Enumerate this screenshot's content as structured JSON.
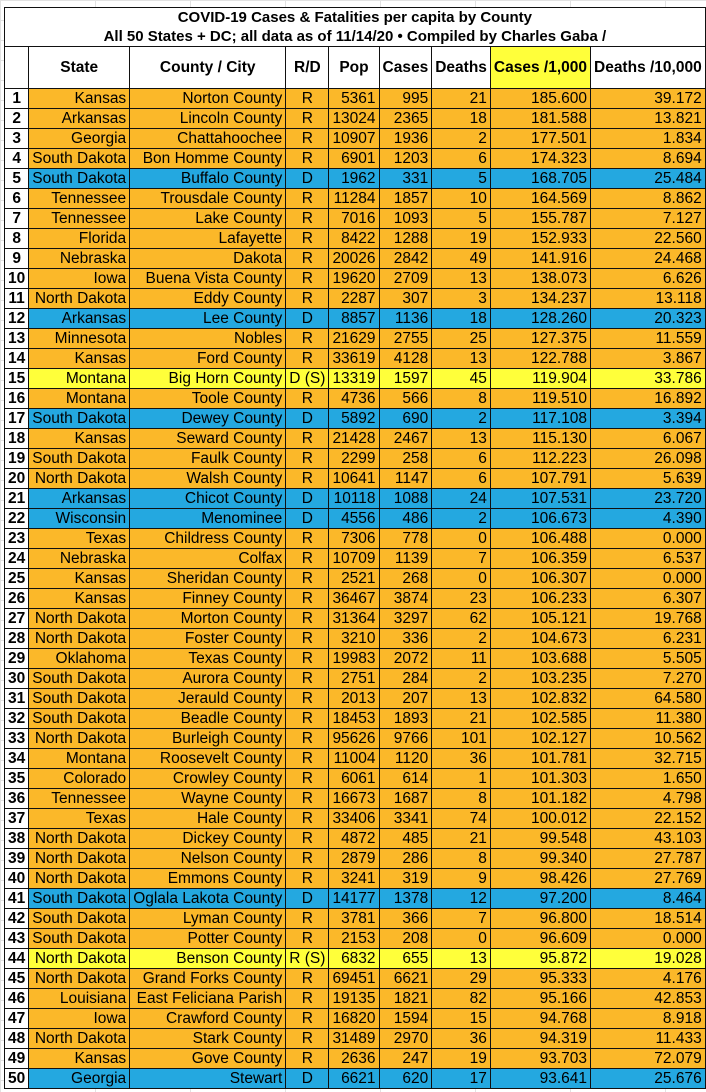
{
  "title": {
    "line1": "COVID-19 Cases & Fatalities per capita by County",
    "line2": "All 50 States + DC; all data as of 11/14/20  • Compiled by Charles Gaba /"
  },
  "columns": [
    "",
    "State",
    "County / City",
    "R/D",
    "Pop",
    "Cases",
    "Deaths",
    "Cases /1,000",
    "Deaths /10,000"
  ],
  "colors": {
    "R": "#fbb829",
    "D": "#24a8e0",
    "S": "#ffff3a"
  },
  "rows": [
    [
      "1",
      "Kansas",
      "Norton County",
      "R",
      "5361",
      "995",
      "21",
      "185.600",
      "39.172"
    ],
    [
      "2",
      "Arkansas",
      "Lincoln County",
      "R",
      "13024",
      "2365",
      "18",
      "181.588",
      "13.821"
    ],
    [
      "3",
      "Georgia",
      "Chattahoochee",
      "R",
      "10907",
      "1936",
      "2",
      "177.501",
      "1.834"
    ],
    [
      "4",
      "South Dakota",
      "Bon Homme County",
      "R",
      "6901",
      "1203",
      "6",
      "174.323",
      "8.694"
    ],
    [
      "5",
      "South Dakota",
      "Buffalo County",
      "D",
      "1962",
      "331",
      "5",
      "168.705",
      "25.484"
    ],
    [
      "6",
      "Tennessee",
      "Trousdale County",
      "R",
      "11284",
      "1857",
      "10",
      "164.569",
      "8.862"
    ],
    [
      "7",
      "Tennessee",
      "Lake County",
      "R",
      "7016",
      "1093",
      "5",
      "155.787",
      "7.127"
    ],
    [
      "8",
      "Florida",
      "Lafayette",
      "R",
      "8422",
      "1288",
      "19",
      "152.933",
      "22.560"
    ],
    [
      "9",
      "Nebraska",
      "Dakota",
      "R",
      "20026",
      "2842",
      "49",
      "141.916",
      "24.468"
    ],
    [
      "10",
      "Iowa",
      "Buena Vista County",
      "R",
      "19620",
      "2709",
      "13",
      "138.073",
      "6.626"
    ],
    [
      "11",
      "North Dakota",
      "Eddy County",
      "R",
      "2287",
      "307",
      "3",
      "134.237",
      "13.118"
    ],
    [
      "12",
      "Arkansas",
      "Lee County",
      "D",
      "8857",
      "1136",
      "18",
      "128.260",
      "20.323"
    ],
    [
      "13",
      "Minnesota",
      "Nobles",
      "R",
      "21629",
      "2755",
      "25",
      "127.375",
      "11.559"
    ],
    [
      "14",
      "Kansas",
      "Ford County",
      "R",
      "33619",
      "4128",
      "13",
      "122.788",
      "3.867"
    ],
    [
      "15",
      "Montana",
      "Big Horn County",
      "D (S)",
      "13319",
      "1597",
      "45",
      "119.904",
      "33.786"
    ],
    [
      "16",
      "Montana",
      "Toole County",
      "R",
      "4736",
      "566",
      "8",
      "119.510",
      "16.892"
    ],
    [
      "17",
      "South Dakota",
      "Dewey County",
      "D",
      "5892",
      "690",
      "2",
      "117.108",
      "3.394"
    ],
    [
      "18",
      "Kansas",
      "Seward County",
      "R",
      "21428",
      "2467",
      "13",
      "115.130",
      "6.067"
    ],
    [
      "19",
      "South Dakota",
      "Faulk County",
      "R",
      "2299",
      "258",
      "6",
      "112.223",
      "26.098"
    ],
    [
      "20",
      "North Dakota",
      "Walsh County",
      "R",
      "10641",
      "1147",
      "6",
      "107.791",
      "5.639"
    ],
    [
      "21",
      "Arkansas",
      "Chicot County",
      "D",
      "10118",
      "1088",
      "24",
      "107.531",
      "23.720"
    ],
    [
      "22",
      "Wisconsin",
      "Menominee",
      "D",
      "4556",
      "486",
      "2",
      "106.673",
      "4.390"
    ],
    [
      "23",
      "Texas",
      "Childress County",
      "R",
      "7306",
      "778",
      "0",
      "106.488",
      "0.000"
    ],
    [
      "24",
      "Nebraska",
      "Colfax",
      "R",
      "10709",
      "1139",
      "7",
      "106.359",
      "6.537"
    ],
    [
      "25",
      "Kansas",
      "Sheridan County",
      "R",
      "2521",
      "268",
      "0",
      "106.307",
      "0.000"
    ],
    [
      "26",
      "Kansas",
      "Finney County",
      "R",
      "36467",
      "3874",
      "23",
      "106.233",
      "6.307"
    ],
    [
      "27",
      "North Dakota",
      "Morton County",
      "R",
      "31364",
      "3297",
      "62",
      "105.121",
      "19.768"
    ],
    [
      "28",
      "North Dakota",
      "Foster County",
      "R",
      "3210",
      "336",
      "2",
      "104.673",
      "6.231"
    ],
    [
      "29",
      "Oklahoma",
      "Texas County",
      "R",
      "19983",
      "2072",
      "11",
      "103.688",
      "5.505"
    ],
    [
      "30",
      "South Dakota",
      "Aurora County",
      "R",
      "2751",
      "284",
      "2",
      "103.235",
      "7.270"
    ],
    [
      "31",
      "South Dakota",
      "Jerauld County",
      "R",
      "2013",
      "207",
      "13",
      "102.832",
      "64.580"
    ],
    [
      "32",
      "South Dakota",
      "Beadle County",
      "R",
      "18453",
      "1893",
      "21",
      "102.585",
      "11.380"
    ],
    [
      "33",
      "North Dakota",
      "Burleigh County",
      "R",
      "95626",
      "9766",
      "101",
      "102.127",
      "10.562"
    ],
    [
      "34",
      "Montana",
      "Roosevelt County",
      "R",
      "11004",
      "1120",
      "36",
      "101.781",
      "32.715"
    ],
    [
      "35",
      "Colorado",
      "Crowley County",
      "R",
      "6061",
      "614",
      "1",
      "101.303",
      "1.650"
    ],
    [
      "36",
      "Tennessee",
      "Wayne County",
      "R",
      "16673",
      "1687",
      "8",
      "101.182",
      "4.798"
    ],
    [
      "37",
      "Texas",
      "Hale County",
      "R",
      "33406",
      "3341",
      "74",
      "100.012",
      "22.152"
    ],
    [
      "38",
      "North Dakota",
      "Dickey County",
      "R",
      "4872",
      "485",
      "21",
      "99.548",
      "43.103"
    ],
    [
      "39",
      "North Dakota",
      "Nelson County",
      "R",
      "2879",
      "286",
      "8",
      "99.340",
      "27.787"
    ],
    [
      "40",
      "North Dakota",
      "Emmons County",
      "R",
      "3241",
      "319",
      "9",
      "98.426",
      "27.769"
    ],
    [
      "41",
      "South Dakota",
      "Oglala Lakota County",
      "D",
      "14177",
      "1378",
      "12",
      "97.200",
      "8.464"
    ],
    [
      "42",
      "South Dakota",
      "Lyman County",
      "R",
      "3781",
      "366",
      "7",
      "96.800",
      "18.514"
    ],
    [
      "43",
      "South Dakota",
      "Potter County",
      "R",
      "2153",
      "208",
      "0",
      "96.609",
      "0.000"
    ],
    [
      "44",
      "North Dakota",
      "Benson County",
      "R (S)",
      "6832",
      "655",
      "13",
      "95.872",
      "19.028"
    ],
    [
      "45",
      "North Dakota",
      "Grand Forks County",
      "R",
      "69451",
      "6621",
      "29",
      "95.333",
      "4.176"
    ],
    [
      "46",
      "Louisiana",
      "East Feliciana Parish",
      "R",
      "19135",
      "1821",
      "82",
      "95.166",
      "42.853"
    ],
    [
      "47",
      "Iowa",
      "Crawford County",
      "R",
      "16820",
      "1594",
      "15",
      "94.768",
      "8.918"
    ],
    [
      "48",
      "North Dakota",
      "Stark County",
      "R",
      "31489",
      "2970",
      "36",
      "94.319",
      "11.433"
    ],
    [
      "49",
      "Kansas",
      "Gove County",
      "R",
      "2636",
      "247",
      "19",
      "93.703",
      "72.079"
    ],
    [
      "50",
      "Georgia",
      "Stewart",
      "D",
      "6621",
      "620",
      "17",
      "93.641",
      "25.676"
    ]
  ]
}
